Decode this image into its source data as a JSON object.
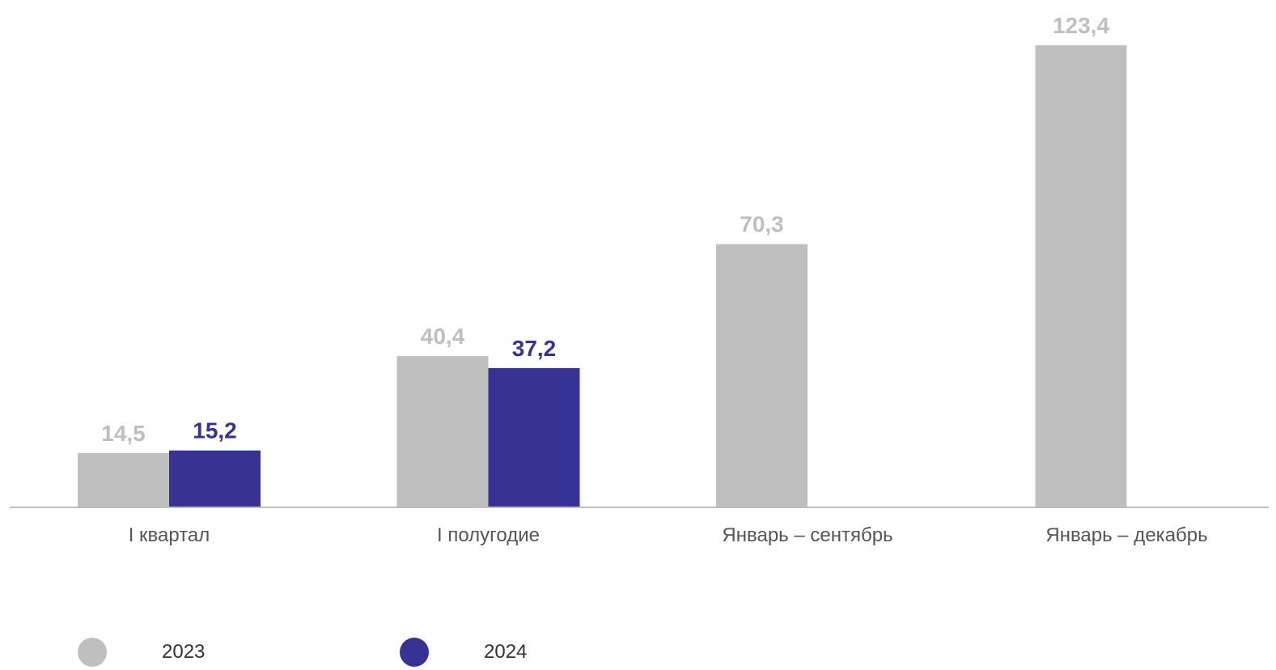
{
  "chart_data": {
    "type": "bar",
    "categories": [
      "I квартал",
      "I полугодие",
      "Январь – сентябрь",
      "Январь – декабрь"
    ],
    "series": [
      {
        "name": "2023",
        "color": "#bfbfbf",
        "values": [
          14.5,
          40.4,
          70.3,
          123.4
        ],
        "labels": [
          "14,5",
          "40,4",
          "70,3",
          "123,4"
        ]
      },
      {
        "name": "2024",
        "color": "#373395",
        "values": [
          15.2,
          37.2,
          null,
          null
        ],
        "labels": [
          "15,2",
          "37,2",
          null,
          null
        ]
      }
    ],
    "ylim": [
      0,
      123.4
    ],
    "grid": false,
    "legend_position": "bottom-left"
  }
}
